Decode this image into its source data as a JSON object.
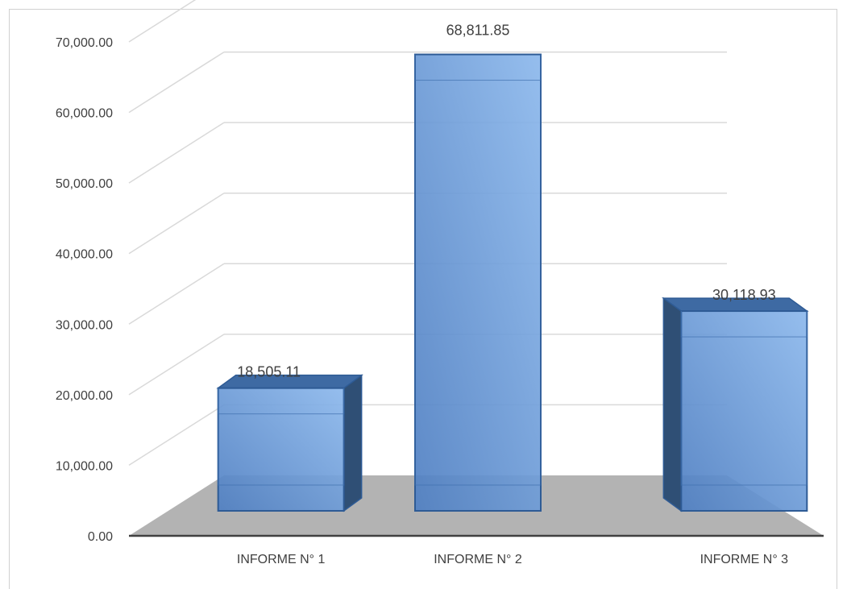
{
  "chart_data": {
    "type": "bar",
    "style": "3d-column",
    "categories": [
      "INFORME N° 1",
      "INFORME N° 2",
      "INFORME N° 3"
    ],
    "series": [
      {
        "values": [
          18505.11,
          68811.85,
          30118.93
        ]
      }
    ],
    "data_labels": [
      "18,505.11",
      "68,811.85",
      "30,118.93"
    ],
    "y_ticks": [
      "0.00",
      "10,000.00",
      "20,000.00",
      "30,000.00",
      "40,000.00",
      "50,000.00",
      "60,000.00",
      "70,000.00"
    ],
    "ylim": [
      0,
      70000
    ],
    "grid": true,
    "legend": "none",
    "colors": {
      "bar": "#5b8ccf",
      "bar_side": "#2f4f75",
      "bar_top": "#3e6aa3",
      "bar_edge": "#2e5b95",
      "floor": "#b3b3b3",
      "grid": "#d9d9d9",
      "axis": "#404040"
    }
  }
}
